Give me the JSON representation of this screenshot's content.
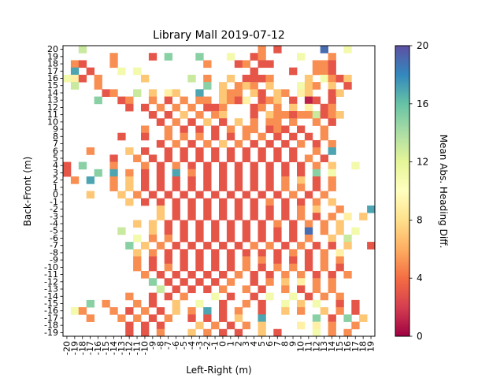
{
  "chart_data": {
    "type": "heatmap",
    "title": "Library Mall 2019-07-12",
    "xlabel": "Left-Right (m)",
    "ylabel": "Back-Front (m)",
    "colorbar_label": "Mean Abs. Heading Diff.",
    "colormap": "Spectral",
    "vlim": [
      0,
      20
    ],
    "colorbar_ticks": [
      0,
      4,
      8,
      12,
      16,
      20
    ],
    "x_ticks": [
      -20,
      -19,
      -18,
      -17,
      -16,
      -15,
      -14,
      -13,
      -12,
      -11,
      -10,
      -9,
      -8,
      -7,
      -6,
      -5,
      -4,
      -3,
      -2,
      -1,
      0,
      1,
      2,
      3,
      4,
      5,
      6,
      7,
      8,
      9,
      10,
      11,
      12,
      13,
      14,
      15,
      16,
      17,
      18,
      19
    ],
    "y_ticks": [
      20,
      19,
      18,
      17,
      16,
      15,
      14,
      13,
      12,
      11,
      10,
      9,
      8,
      7,
      6,
      5,
      4,
      3,
      2,
      1,
      0,
      -1,
      -2,
      -3,
      -4,
      -5,
      -6,
      -7,
      -8,
      -9,
      -10,
      -11,
      -12,
      -13,
      -14,
      -15,
      -16,
      -17,
      -18,
      -19
    ],
    "grid_note": "rows listed top (y=20) to bottom (y=-19); each string lists columns x=-20..19; '.' = no data, 0-9 = value bin (value ~= digit*2+1)",
    "grid": [
      "..6......................2.1.....9..5...",
      "......2....1.7...7...5..12....5...2.....",
      ".21...2...........2...12.11.....221.....",
      ".8.1...5.5..............1....1..221.....",
      "541.2.....3.....6.2..3.1112....3.5213...",
      ".6..2.............7.3.232.3...532.3.1...",
      ".....12..6.3.43..8..322.31.32.43..13....",
      "....7..12..2.1.2.22.3214.123.1.01.1.....",
      "........1.1.2.2.2.112...12.2.3.4.12.....",
      "...........1.1.3.2.23...1.3221226123....",
      "............1.2.1.3.1.3.2.22.2..2.1.....",
      "..........2..2.1.1.1.2.22.121.1..2......",
      ".......1..1..2.2.2.1.1.2.2.1.1.1.2......",
      "............1.2.1.2.3.2.1.1.1.2.1.2.....",
      "...2....3.1..1.1.1.1.1.1.1.1.1..2.8.....",
      "......1..2.1.1.1.1.1.1.1.1.1.1.2.1......",
      "1.7...2...2.1.2.1.1.1.1.1.1.1.1.2.3..5..",
      "1...7.8.2.1.1.8.2.1.1.1.1.1.1.1.7.5.....",
      ".2.8..2.3.1.1.1.1.1.1.1.1.1.2.3.1.2.....",
      "......2.3.1.1.1.1.1.1.1.1.1.2.2.1.2.....",
      "...3...3.2.1.1.1.1.1.1.1.1.1.2.1.2......",
      "........3.1.1.1.1.1.1.1.1.2.1.1.2.3.....",
      "............3.1.1.1.1.1.1.1.1.2.3..2...8",
      "............3.1.1.1.1.1.1.1.1.2.1.2.4.3.",
      ".........3.3.1.1.1.1.1.1.1.2.1.2.2.3....",
      ".......6...3.1.1.1.1.1.1.1.1.1.9.2.3.5..",
      ".........5.2.2.1.1.1.1.1.1.1.1.2..3.6...",
      "........7.3.2.1.1.1.1.1.2.2.1.2.1.1.3..1",
      ".........3.2.1.1.1.1.1.1.1.1.2.1.2.4....",
      ".........2.1.1.1.1.1.1.2.2.1.1.1.2.2....",
      ".........2.1.2.1.1.1.1.2.1.2.2.1.2.1....",
      "..........2.1.1.1.1.1.2.1.1.2.2.1.1.2...",
      "...........7.1.1.1.1.2..1.2.3.4.2.2.....",
      "............6.1.1.1.2..2.1..2.1.2.2.....",
      "........2..1.1.2...5.1..1.5..5.1.2.2....",
      "...7.2...2.1..3..5..1..2.1..5.3.5..1.1..",
      ".52...2.1.2.1.3.2.8.1.2..1..3.2..3.2.1..",
      "...2...2.2.1.2..1.1.1.3..8......7.1.7.3.",
      "........1.1.1....3.2.1.2.3....4.4.2..2..",
      "........1.1.2...3.2.1.1..3.1....5.2.2..."
    ]
  }
}
